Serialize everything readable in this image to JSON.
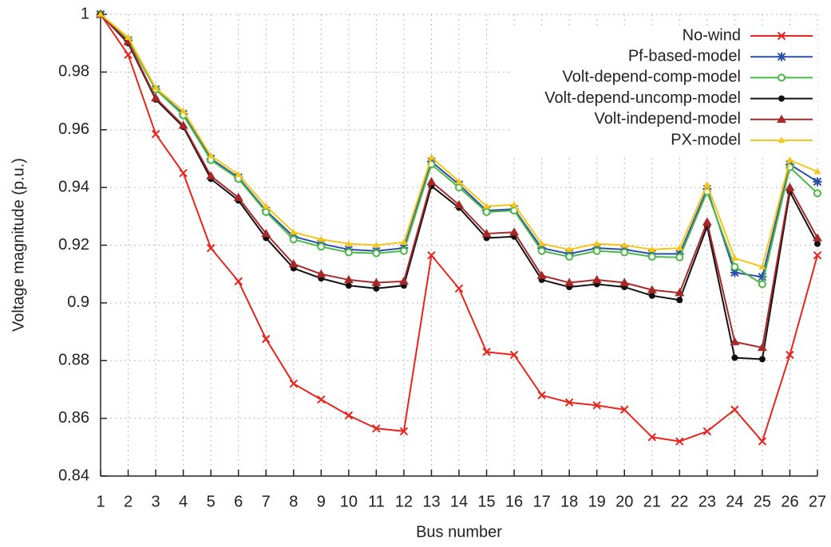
{
  "chart_data": {
    "type": "line",
    "x_label": "Bus number",
    "y_label": "Voltage magnitude (p.u.)",
    "x": [
      1,
      2,
      3,
      4,
      5,
      6,
      7,
      8,
      9,
      10,
      11,
      12,
      13,
      14,
      15,
      16,
      17,
      18,
      19,
      20,
      21,
      22,
      23,
      24,
      25,
      26,
      27
    ],
    "xlim": [
      1,
      27
    ],
    "xticks": [
      1,
      2,
      3,
      4,
      5,
      6,
      7,
      8,
      9,
      10,
      11,
      12,
      13,
      14,
      15,
      16,
      17,
      18,
      19,
      20,
      21,
      22,
      23,
      24,
      25,
      26,
      27
    ],
    "ylim": [
      0.84,
      1
    ],
    "yticks": [
      0.84,
      0.86,
      0.88,
      0.9,
      0.92,
      0.94,
      0.96,
      0.98,
      1
    ],
    "grid": true,
    "legend": "upper right",
    "series": [
      {
        "name": "No-wind",
        "color": "#e8241c",
        "marker": "x",
        "values": [
          1,
          0.986,
          0.9585,
          0.945,
          0.919,
          0.9075,
          0.8875,
          0.872,
          0.8665,
          0.861,
          0.8565,
          0.8555,
          0.9165,
          0.905,
          0.883,
          0.882,
          0.868,
          0.8655,
          0.8645,
          0.863,
          0.8535,
          0.852,
          0.8555,
          0.863,
          0.852,
          0.882,
          0.9165
        ]
      },
      {
        "name": "Pf-based-model",
        "color": "#2a4fa8",
        "marker": "asterisk",
        "values": [
          1,
          0.991,
          0.974,
          0.9655,
          0.95,
          0.9435,
          0.932,
          0.923,
          0.9205,
          0.9185,
          0.918,
          0.919,
          0.949,
          0.941,
          0.932,
          0.9325,
          0.919,
          0.917,
          0.919,
          0.9185,
          0.917,
          0.917,
          0.9395,
          0.9105,
          0.909,
          0.948,
          0.942
        ]
      },
      {
        "name": "Volt-depend-comp-model",
        "color": "#4cb848",
        "marker": "circle-open",
        "values": [
          1,
          0.991,
          0.974,
          0.965,
          0.9495,
          0.943,
          0.9315,
          0.922,
          0.9195,
          0.9175,
          0.9172,
          0.918,
          0.948,
          0.94,
          0.9315,
          0.932,
          0.918,
          0.916,
          0.918,
          0.9175,
          0.916,
          0.9158,
          0.9385,
          0.9125,
          0.9065,
          0.947,
          0.938
        ]
      },
      {
        "name": "Volt-depend-uncomp-model",
        "color": "#111111",
        "marker": "circle",
        "values": [
          1,
          0.99,
          0.9705,
          0.961,
          0.943,
          0.9355,
          0.9225,
          0.912,
          0.9085,
          0.906,
          0.905,
          0.906,
          0.9405,
          0.933,
          0.9225,
          0.923,
          0.908,
          0.9055,
          0.9065,
          0.9055,
          0.9025,
          0.901,
          0.9265,
          0.881,
          0.8805,
          0.9385,
          0.9205
        ]
      },
      {
        "name": "Volt-independ-model",
        "color": "#a8282a",
        "marker": "triangle",
        "values": [
          1,
          0.9905,
          0.971,
          0.9615,
          0.944,
          0.9365,
          0.924,
          0.9135,
          0.91,
          0.908,
          0.907,
          0.9075,
          0.942,
          0.934,
          0.924,
          0.9245,
          0.9095,
          0.907,
          0.908,
          0.907,
          0.9045,
          0.9035,
          0.928,
          0.8865,
          0.8845,
          0.94,
          0.9225
        ]
      },
      {
        "name": "PX-model",
        "color": "#f5c518",
        "marker": "triangle-small",
        "values": [
          1,
          0.992,
          0.9745,
          0.9665,
          0.951,
          0.9445,
          0.9335,
          0.9245,
          0.922,
          0.9205,
          0.92,
          0.921,
          0.9505,
          0.942,
          0.9335,
          0.934,
          0.9205,
          0.9185,
          0.9205,
          0.92,
          0.9185,
          0.919,
          0.941,
          0.9155,
          0.9125,
          0.9495,
          0.9455
        ]
      }
    ]
  }
}
